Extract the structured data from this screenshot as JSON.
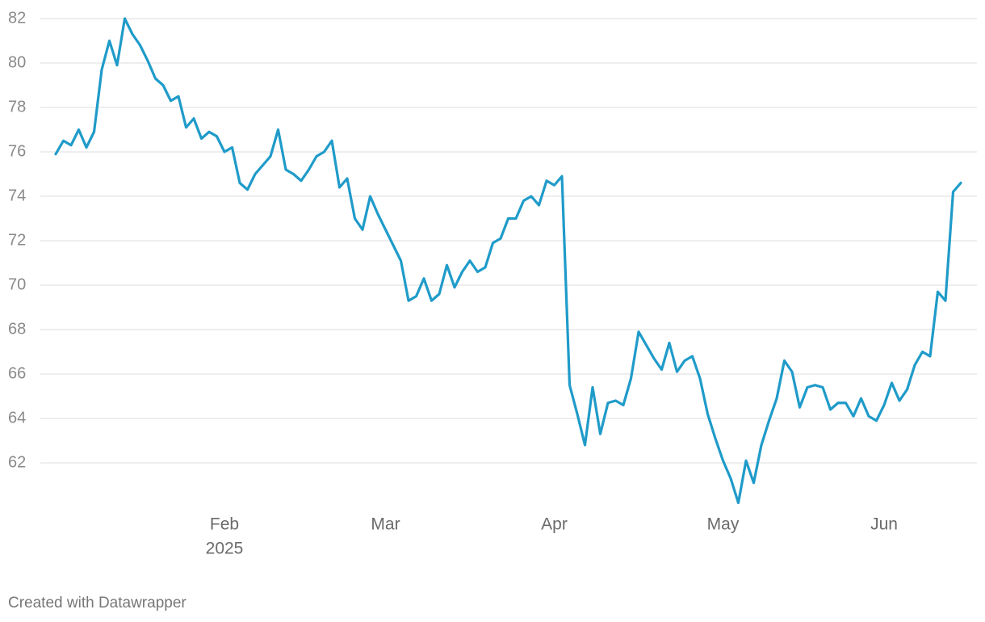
{
  "chart_data": {
    "type": "line",
    "categories": [
      null,
      null,
      null,
      null,
      null,
      null,
      null,
      null,
      null,
      null,
      null,
      null,
      null,
      null,
      null,
      null,
      null,
      null,
      null,
      null,
      null,
      null,
      "Feb",
      null,
      null,
      null,
      null,
      null,
      null,
      null,
      null,
      null,
      null,
      null,
      null,
      null,
      null,
      null,
      null,
      null,
      null,
      null,
      null,
      "Mar",
      null,
      null,
      null,
      null,
      null,
      null,
      null,
      null,
      null,
      null,
      null,
      null,
      null,
      null,
      null,
      null,
      null,
      null,
      null,
      null,
      null,
      "Apr",
      null,
      null,
      null,
      null,
      null,
      null,
      null,
      null,
      null,
      null,
      null,
      null,
      null,
      null,
      null,
      null,
      null,
      null,
      null,
      null,
      null,
      "May",
      null,
      null,
      null,
      null,
      null,
      null,
      null,
      null,
      null,
      null,
      null,
      null,
      null,
      null,
      null,
      null,
      null,
      null,
      null,
      null,
      "Jun",
      null,
      null,
      null,
      null,
      null,
      null,
      null,
      null,
      null,
      null
    ],
    "year": "2025",
    "values": [
      75.9,
      76.5,
      76.3,
      77.0,
      76.2,
      76.9,
      79.7,
      81.0,
      79.9,
      82.0,
      81.3,
      80.8,
      80.1,
      79.3,
      79.0,
      78.3,
      78.5,
      77.1,
      77.5,
      76.6,
      76.9,
      76.7,
      76.0,
      76.2,
      74.6,
      74.3,
      75.0,
      75.4,
      75.8,
      77.0,
      75.2,
      75.0,
      74.7,
      75.2,
      75.8,
      76.0,
      76.5,
      74.4,
      74.8,
      73.0,
      72.5,
      74.0,
      73.2,
      72.5,
      71.8,
      71.1,
      69.3,
      69.5,
      70.3,
      69.3,
      69.6,
      70.9,
      69.9,
      70.6,
      71.1,
      70.6,
      70.8,
      71.9,
      72.1,
      73.0,
      73.0,
      73.8,
      74.0,
      73.6,
      74.7,
      74.5,
      74.9,
      65.5,
      64.2,
      62.8,
      65.4,
      63.3,
      64.7,
      64.8,
      64.6,
      65.8,
      67.9,
      67.3,
      66.7,
      66.2,
      67.4,
      66.1,
      66.6,
      66.8,
      65.8,
      64.2,
      63.1,
      62.1,
      61.3,
      60.2,
      62.1,
      61.1,
      62.8,
      63.9,
      64.9,
      66.6,
      66.1,
      64.5,
      65.4,
      65.5,
      65.4,
      64.4,
      64.7,
      64.7,
      64.1,
      64.9,
      64.1,
      63.9,
      64.6,
      65.6,
      64.8,
      65.3,
      66.4,
      67.0,
      66.8,
      69.7,
      69.3,
      74.2,
      74.6
    ],
    "color": "#1f9bc9",
    "ylim": [
      60,
      82
    ],
    "yticks": [
      62,
      64,
      66,
      68,
      70,
      72,
      74,
      76,
      78,
      80,
      82
    ],
    "grid": true,
    "credit": "Created with Datawrapper"
  }
}
